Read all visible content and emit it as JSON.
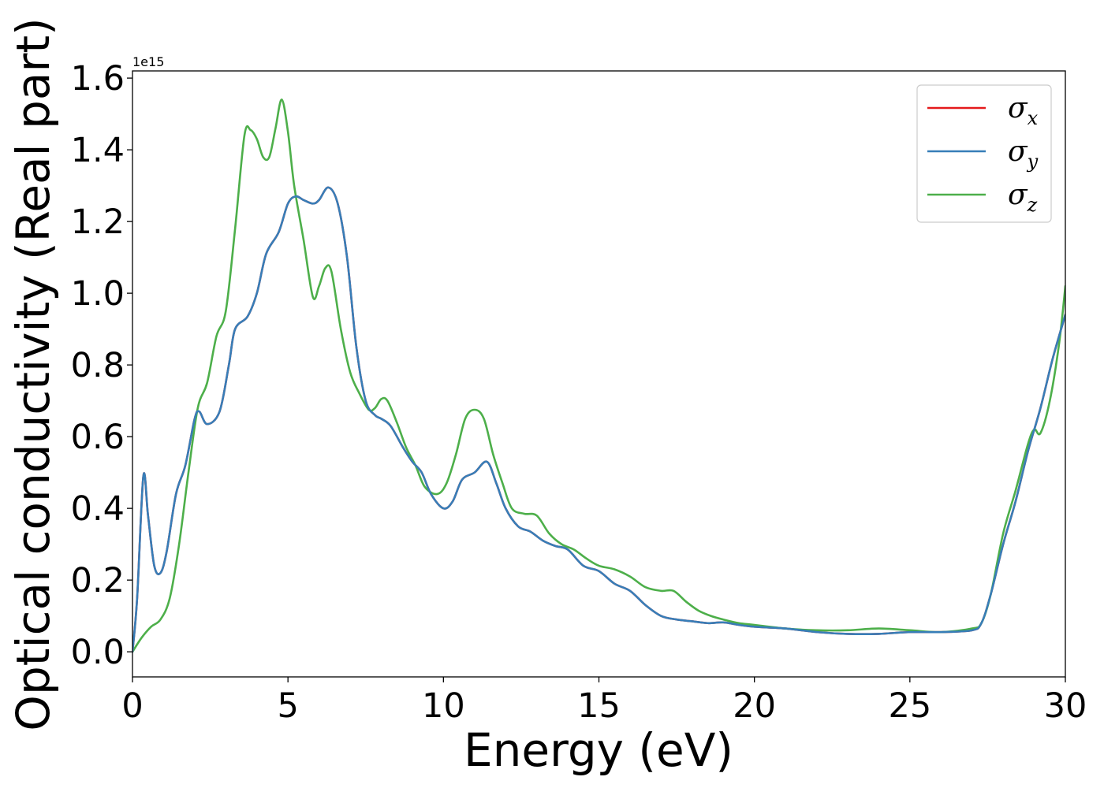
{
  "chart_data": {
    "type": "line",
    "xlabel": "Energy (eV)",
    "ylabel": "Optical conductivity (Real part)",
    "y_offset_text": "1e15",
    "xlim": [
      0,
      30
    ],
    "ylim": [
      -0.07,
      1.62
    ],
    "x_ticks": [
      0,
      5,
      10,
      15,
      20,
      25,
      30
    ],
    "x_tick_labels": [
      "0",
      "5",
      "10",
      "15",
      "20",
      "25",
      "30"
    ],
    "y_ticks": [
      0.0,
      0.2,
      0.4,
      0.6,
      0.8,
      1.0,
      1.2,
      1.4,
      1.6
    ],
    "y_tick_labels": [
      "0.0",
      "0.2",
      "0.4",
      "0.6",
      "0.8",
      "1.0",
      "1.2",
      "1.4",
      "1.6"
    ],
    "legend_position": "top-right",
    "grid": false,
    "series": [
      {
        "name": "σx",
        "symbol": "σ",
        "subscript": "x",
        "color": "#e41a1c",
        "x": [
          0,
          0.15,
          0.35,
          0.5,
          0.7,
          0.9,
          1.1,
          1.4,
          1.7,
          2.0,
          2.15,
          2.4,
          2.8,
          3.1,
          3.3,
          3.7,
          4.0,
          4.3,
          4.7,
          5.0,
          5.25,
          5.5,
          5.8,
          6.0,
          6.3,
          6.6,
          6.9,
          7.2,
          7.5,
          7.8,
          8.0,
          8.3,
          8.7,
          9.0,
          9.3,
          9.6,
          10.0,
          10.3,
          10.6,
          11.0,
          11.4,
          11.7,
          12.0,
          12.4,
          12.8,
          13.2,
          13.6,
          14.0,
          14.5,
          15.0,
          15.5,
          16.0,
          16.5,
          17.0,
          17.5,
          18.0,
          18.5,
          19.0,
          19.5,
          20,
          21,
          22,
          23,
          24,
          25,
          26,
          27,
          27.3,
          27.6,
          28.0,
          28.4,
          28.8,
          29.2,
          29.6,
          30.0
        ],
        "values": [
          0,
          0.15,
          0.49,
          0.38,
          0.24,
          0.22,
          0.28,
          0.44,
          0.52,
          0.65,
          0.67,
          0.635,
          0.67,
          0.8,
          0.9,
          0.935,
          1.0,
          1.11,
          1.17,
          1.25,
          1.27,
          1.26,
          1.25,
          1.26,
          1.295,
          1.25,
          1.1,
          0.85,
          0.7,
          0.66,
          0.65,
          0.63,
          0.57,
          0.53,
          0.5,
          0.44,
          0.4,
          0.42,
          0.48,
          0.5,
          0.53,
          0.47,
          0.4,
          0.35,
          0.335,
          0.31,
          0.295,
          0.285,
          0.24,
          0.225,
          0.19,
          0.17,
          0.13,
          0.1,
          0.09,
          0.085,
          0.08,
          0.082,
          0.075,
          0.07,
          0.065,
          0.055,
          0.05,
          0.05,
          0.055,
          0.055,
          0.06,
          0.08,
          0.16,
          0.3,
          0.42,
          0.56,
          0.68,
          0.82,
          0.94
        ]
      },
      {
        "name": "σy",
        "symbol": "σ",
        "subscript": "y",
        "color": "#377eb8",
        "x": [
          0,
          0.15,
          0.35,
          0.5,
          0.7,
          0.9,
          1.1,
          1.4,
          1.7,
          2.0,
          2.15,
          2.4,
          2.8,
          3.1,
          3.3,
          3.7,
          4.0,
          4.3,
          4.7,
          5.0,
          5.25,
          5.5,
          5.8,
          6.0,
          6.3,
          6.6,
          6.9,
          7.2,
          7.5,
          7.8,
          8.0,
          8.3,
          8.7,
          9.0,
          9.3,
          9.6,
          10.0,
          10.3,
          10.6,
          11.0,
          11.4,
          11.7,
          12.0,
          12.4,
          12.8,
          13.2,
          13.6,
          14.0,
          14.5,
          15.0,
          15.5,
          16.0,
          16.5,
          17.0,
          17.5,
          18.0,
          18.5,
          19.0,
          19.5,
          20,
          21,
          22,
          23,
          24,
          25,
          26,
          27,
          27.3,
          27.6,
          28.0,
          28.4,
          28.8,
          29.2,
          29.6,
          30.0
        ],
        "values": [
          0,
          0.15,
          0.49,
          0.38,
          0.24,
          0.22,
          0.28,
          0.44,
          0.52,
          0.65,
          0.67,
          0.635,
          0.67,
          0.8,
          0.9,
          0.935,
          1.0,
          1.11,
          1.17,
          1.25,
          1.27,
          1.26,
          1.25,
          1.26,
          1.295,
          1.25,
          1.1,
          0.85,
          0.7,
          0.66,
          0.65,
          0.63,
          0.57,
          0.53,
          0.5,
          0.44,
          0.4,
          0.42,
          0.48,
          0.5,
          0.53,
          0.47,
          0.4,
          0.35,
          0.335,
          0.31,
          0.295,
          0.285,
          0.24,
          0.225,
          0.19,
          0.17,
          0.13,
          0.1,
          0.09,
          0.085,
          0.08,
          0.082,
          0.075,
          0.07,
          0.065,
          0.055,
          0.05,
          0.05,
          0.055,
          0.055,
          0.06,
          0.08,
          0.16,
          0.3,
          0.42,
          0.56,
          0.68,
          0.82,
          0.94
        ]
      },
      {
        "name": "σz",
        "symbol": "σ",
        "subscript": "z",
        "color": "#4daf4a",
        "x": [
          0,
          0.3,
          0.6,
          0.9,
          1.2,
          1.5,
          1.8,
          2.1,
          2.4,
          2.7,
          3.0,
          3.3,
          3.6,
          3.8,
          4.0,
          4.2,
          4.4,
          4.6,
          4.8,
          5.0,
          5.2,
          5.5,
          5.8,
          6.0,
          6.2,
          6.4,
          6.7,
          7.0,
          7.3,
          7.6,
          7.8,
          8.0,
          8.2,
          8.5,
          8.8,
          9.1,
          9.4,
          9.8,
          10.1,
          10.4,
          10.7,
          11.0,
          11.3,
          11.6,
          11.9,
          12.2,
          12.6,
          13.0,
          13.4,
          13.8,
          14.2,
          14.6,
          15.0,
          15.5,
          16.0,
          16.5,
          17.0,
          17.4,
          17.8,
          18.2,
          18.6,
          19.0,
          19.5,
          20,
          21,
          22,
          23,
          24,
          25,
          26,
          27,
          27.3,
          27.6,
          28.0,
          28.4,
          28.8,
          29.0,
          29.2,
          29.5,
          29.8,
          30.0
        ],
        "values": [
          0,
          0.04,
          0.07,
          0.09,
          0.15,
          0.3,
          0.5,
          0.68,
          0.75,
          0.88,
          0.95,
          1.18,
          1.44,
          1.455,
          1.43,
          1.38,
          1.38,
          1.46,
          1.54,
          1.45,
          1.3,
          1.15,
          0.99,
          1.02,
          1.07,
          1.06,
          0.9,
          0.78,
          0.72,
          0.675,
          0.68,
          0.705,
          0.7,
          0.64,
          0.57,
          0.52,
          0.46,
          0.44,
          0.47,
          0.55,
          0.65,
          0.675,
          0.65,
          0.55,
          0.47,
          0.4,
          0.385,
          0.38,
          0.33,
          0.3,
          0.285,
          0.26,
          0.24,
          0.23,
          0.21,
          0.18,
          0.17,
          0.17,
          0.14,
          0.115,
          0.1,
          0.09,
          0.08,
          0.075,
          0.065,
          0.06,
          0.06,
          0.065,
          0.06,
          0.055,
          0.065,
          0.08,
          0.16,
          0.33,
          0.45,
          0.58,
          0.62,
          0.61,
          0.7,
          0.86,
          1.02
        ]
      }
    ]
  }
}
